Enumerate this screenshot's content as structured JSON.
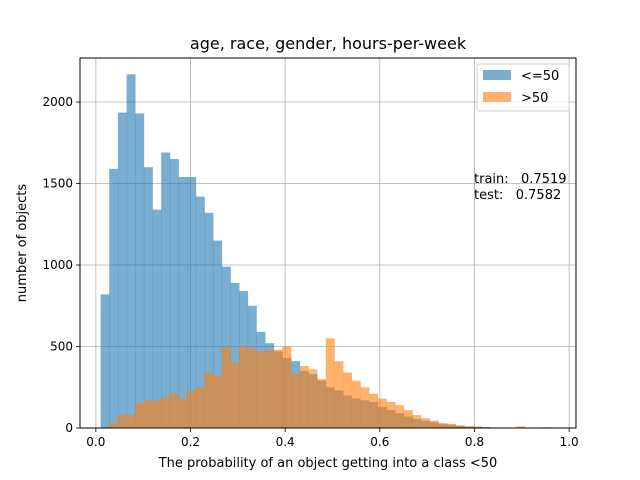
{
  "chart_data": {
    "type": "histogram",
    "title": "age, race, gender, hours-per-week",
    "xlabel": "The probability of an object getting into a class <50",
    "ylabel": "number of objects",
    "xlim": [
      -0.0335,
      1.0145
    ],
    "ylim": [
      0,
      2270
    ],
    "xticks": [
      0.0,
      0.2,
      0.4,
      0.6,
      0.8,
      1.0
    ],
    "xtick_labels": [
      "0.0",
      "0.2",
      "0.4",
      "0.6",
      "0.8",
      "1.0"
    ],
    "yticks": [
      0,
      500,
      1000,
      1500,
      2000
    ],
    "ytick_labels": [
      "0",
      "500",
      "1000",
      "1500",
      "2000"
    ],
    "grid": true,
    "legend_position": "top-right",
    "bin_edges": [
      0.01,
      0.0283,
      0.0466,
      0.0649,
      0.0832,
      0.1015,
      0.1198,
      0.1381,
      0.1564,
      0.1747,
      0.193,
      0.2113,
      0.2296,
      0.2479,
      0.2662,
      0.2845,
      0.3028,
      0.3211,
      0.3394,
      0.3577,
      0.376,
      0.3943,
      0.4126,
      0.4309,
      0.4492,
      0.4675,
      0.4858,
      0.5041,
      0.5224,
      0.5407,
      0.559,
      0.5773,
      0.5956,
      0.6139,
      0.6322,
      0.6505,
      0.6688,
      0.6871,
      0.7054,
      0.7237,
      0.742,
      0.7603,
      0.7786,
      0.7969,
      0.8152,
      0.8335,
      0.8518,
      0.8701,
      0.8884,
      0.9067,
      0.925,
      0.9433,
      0.9616,
      0.9799
    ],
    "series": [
      {
        "name": "<=50",
        "color": "#1f77b4",
        "opacity": 0.6,
        "values": [
          820,
          1590,
          1935,
          2170,
          1930,
          1600,
          1340,
          1690,
          1650,
          1540,
          1540,
          1420,
          1320,
          1150,
          990,
          890,
          840,
          750,
          590,
          520,
          470,
          430,
          410,
          350,
          330,
          290,
          250,
          230,
          200,
          180,
          170,
          160,
          130,
          110,
          90,
          70,
          55,
          45,
          35,
          25,
          20,
          15,
          10,
          8,
          5,
          3,
          2,
          2,
          1,
          1,
          1,
          0,
          0
        ]
      },
      {
        "name": ">50",
        "color": "#ff7f0e",
        "opacity": 0.6,
        "values": [
          0,
          30,
          80,
          80,
          150,
          170,
          170,
          190,
          210,
          180,
          230,
          250,
          340,
          320,
          500,
          400,
          500,
          490,
          470,
          480,
          480,
          500,
          330,
          380,
          360,
          300,
          550,
          410,
          340,
          290,
          250,
          210,
          180,
          160,
          140,
          110,
          80,
          60,
          45,
          30,
          25,
          15,
          10,
          8,
          5,
          3,
          3,
          2,
          10,
          0,
          0,
          5,
          0
        ]
      }
    ],
    "annotations": [
      {
        "text": "train:   0.7519"
      },
      {
        "text": "test:   0.7582"
      }
    ]
  }
}
